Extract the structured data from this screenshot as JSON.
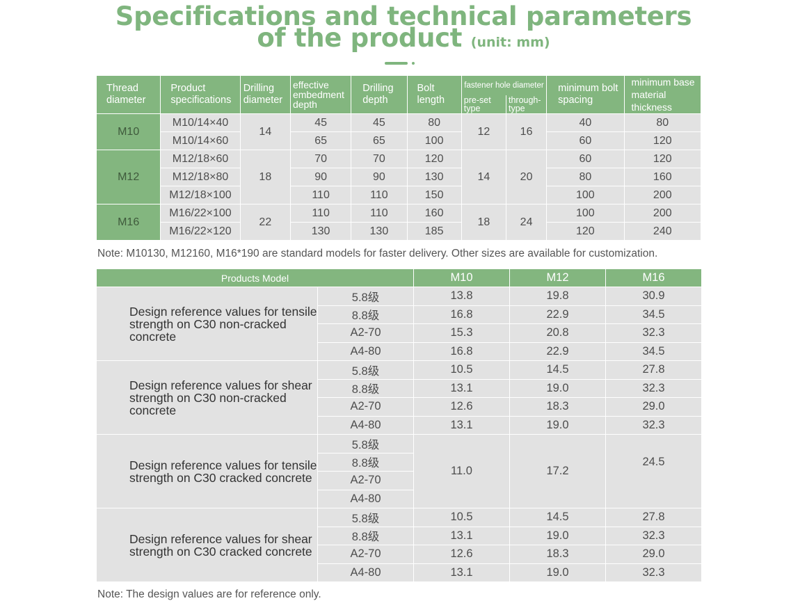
{
  "heading": {
    "line1": "Specifications and technical parameters",
    "line2": "of the product",
    "unit": "(unit: mm)"
  },
  "spec_table": {
    "headers": {
      "thread_diameter": "Thread diameter",
      "product_specifications": "Product specifications",
      "drilling_diameter": "Drilling diameter",
      "effective_embedment_depth": "effective embedment depth",
      "drilling_depth": "Drilling depth",
      "bolt_length": "Bolt length",
      "fastener_hole_diameter": "fastener hole diameter",
      "pre_set_type": "pre-set type",
      "through_type": "through-type",
      "minimum_bolt_spacing": "minimum bolt spacing",
      "minimum_base_material_thickness": "minimum base material thickness"
    },
    "groups": [
      {
        "thread": "M10",
        "drilling_diameter": "14",
        "pre_set": "12",
        "through": "16",
        "rows": [
          {
            "spec": "M10/14×40",
            "embed": "45",
            "depth": "45",
            "length": "80",
            "spacing": "40",
            "thickness": "80"
          },
          {
            "spec": "M10/14×60",
            "embed": "65",
            "depth": "65",
            "length": "100",
            "spacing": "60",
            "thickness": "120"
          }
        ]
      },
      {
        "thread": "M12",
        "drilling_diameter": "18",
        "pre_set": "14",
        "through": "20",
        "rows": [
          {
            "spec": "M12/18×60",
            "embed": "70",
            "depth": "70",
            "length": "120",
            "spacing": "60",
            "thickness": "120"
          },
          {
            "spec": "M12/18×80",
            "embed": "90",
            "depth": "90",
            "length": "130",
            "spacing": "80",
            "thickness": "160"
          },
          {
            "spec": "M12/18×100",
            "embed": "110",
            "depth": "110",
            "length": "150",
            "spacing": "100",
            "thickness": "200"
          }
        ]
      },
      {
        "thread": "M16",
        "drilling_diameter": "22",
        "pre_set": "18",
        "through": "24",
        "rows": [
          {
            "spec": "M16/22×100",
            "embed": "110",
            "depth": "110",
            "length": "160",
            "spacing": "100",
            "thickness": "200"
          },
          {
            "spec": "M16/22×120",
            "embed": "130",
            "depth": "130",
            "length": "185",
            "spacing": "120",
            "thickness": "240"
          }
        ]
      }
    ]
  },
  "note1": "Note: M10130, M12160, M16*190 are standard models for faster delivery. Other sizes are available for customization.",
  "strength_table": {
    "products_model_label": "Products Model",
    "columns": [
      "M10",
      "M12",
      "M16"
    ],
    "sections": [
      {
        "label": "Design reference values for tensile strength on C30 non-cracked concrete",
        "rows": [
          {
            "grade": "5.8级",
            "values": [
              "13.8",
              "19.8",
              "30.9"
            ]
          },
          {
            "grade": "8.8级",
            "values": [
              "16.8",
              "22.9",
              "34.5"
            ]
          },
          {
            "grade": "A2-70",
            "values": [
              "15.3",
              "20.8",
              "32.3"
            ]
          },
          {
            "grade": "A4-80",
            "values": [
              "16.8",
              "22.9",
              "34.5"
            ]
          }
        ]
      },
      {
        "label": "Design reference values for shear strength on C30 non-cracked concrete",
        "rows": [
          {
            "grade": "5.8级",
            "values": [
              "10.5",
              "14.5",
              "27.8"
            ]
          },
          {
            "grade": "8.8级",
            "values": [
              "13.1",
              "19.0",
              "32.3"
            ]
          },
          {
            "grade": "A2-70",
            "values": [
              "12.6",
              "18.3",
              "29.0"
            ]
          },
          {
            "grade": "A4-80",
            "values": [
              "13.1",
              "19.0",
              "32.3"
            ]
          }
        ]
      },
      {
        "label": "Design reference values for tensile strength on C30 cracked concrete",
        "merged_values": [
          "11.0",
          "17.2",
          "24.5"
        ],
        "rows": [
          {
            "grade": "5.8级"
          },
          {
            "grade": "8.8级"
          },
          {
            "grade": "A2-70"
          },
          {
            "grade": "A4-80"
          }
        ]
      },
      {
        "label": "Design reference values for shear strength on C30 cracked concrete",
        "rows": [
          {
            "grade": "5.8级",
            "values": [
              "10.5",
              "14.5",
              "27.8"
            ]
          },
          {
            "grade": "8.8级",
            "values": [
              "13.1",
              "19.0",
              "32.3"
            ]
          },
          {
            "grade": "A2-70",
            "values": [
              "12.6",
              "18.3",
              "29.0"
            ]
          },
          {
            "grade": "A4-80",
            "values": [
              "13.1",
              "19.0",
              "32.3"
            ]
          }
        ]
      }
    ]
  },
  "note2": "Note: The design values are for reference only."
}
